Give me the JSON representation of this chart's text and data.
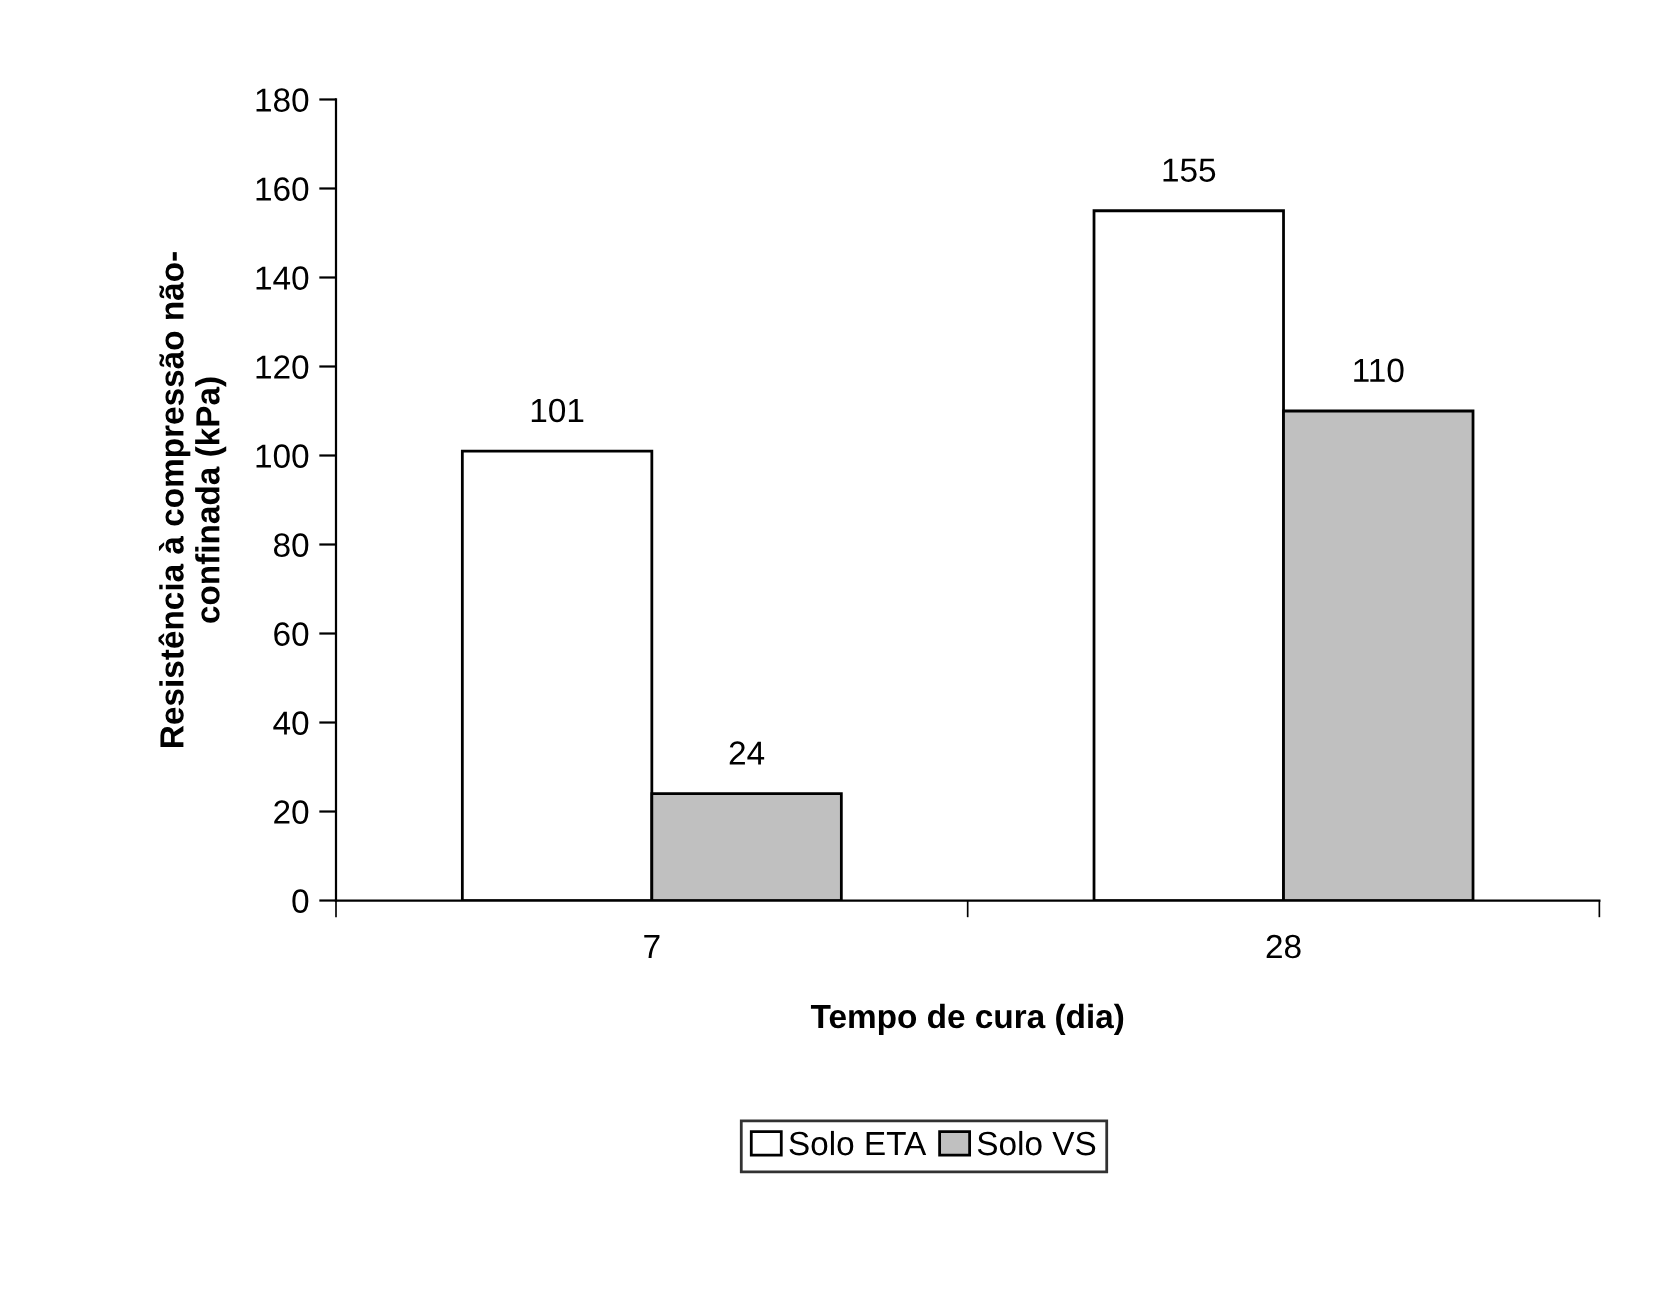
{
  "chart_data": {
    "type": "bar",
    "xlabel": "Tempo de cura (dia)",
    "ylabel": "Resistência à compressão não-\nconfinada (kPa)",
    "categories": [
      "7",
      "28"
    ],
    "series": [
      {
        "name": "Solo ETA",
        "color": "#ffffff",
        "values": [
          101,
          155
        ]
      },
      {
        "name": "Solo VS",
        "color": "#c0c0c0",
        "values": [
          24,
          110
        ]
      }
    ],
    "ylim": [
      0,
      180
    ],
    "yticks": [
      0,
      20,
      40,
      60,
      80,
      100,
      120,
      140,
      160,
      180
    ],
    "data_labels": true,
    "grid": false,
    "legend": "bottom"
  }
}
